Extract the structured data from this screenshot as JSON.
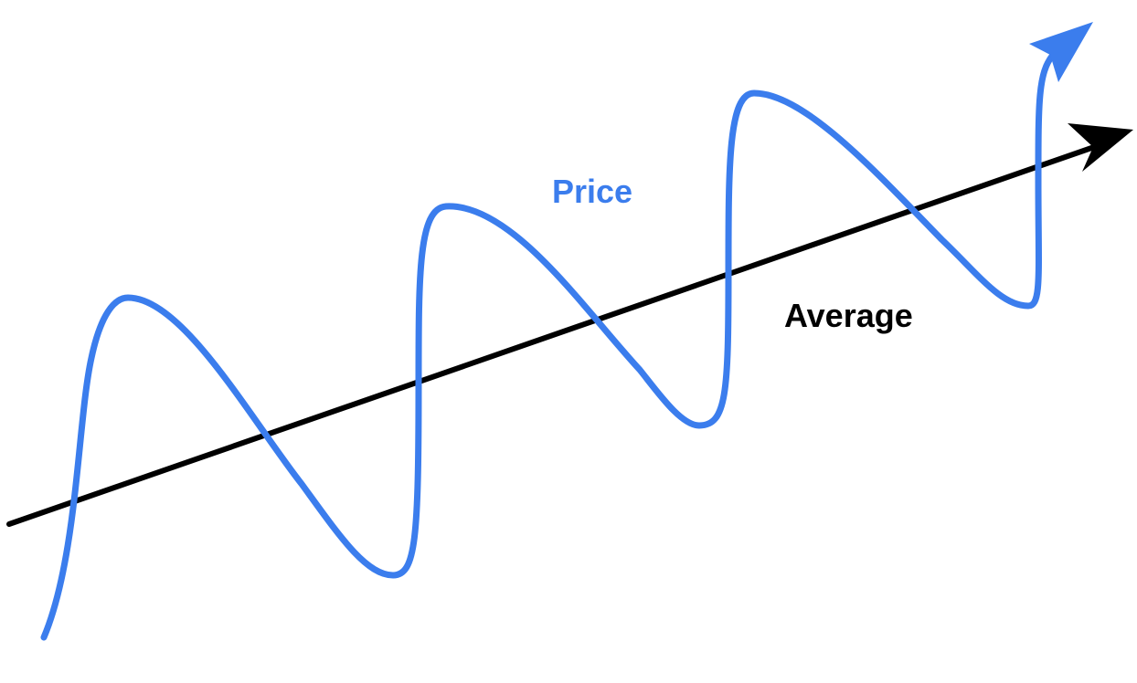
{
  "labels": {
    "price": "Price",
    "average": "Average"
  },
  "colors": {
    "price_line": "#3b7ded",
    "average_line": "#000000",
    "background": "#ffffff"
  }
}
